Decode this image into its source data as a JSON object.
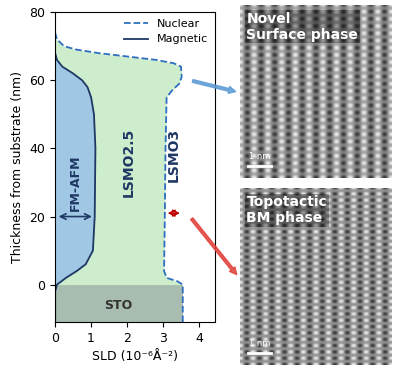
{
  "chart_data": {
    "type": "line",
    "xlabel": "SLD (10⁻⁶Å⁻²)",
    "ylabel": "Thickness from substrate (nm)",
    "xlim": [
      0,
      4.45
    ],
    "xticks": [
      0,
      1,
      2,
      3,
      4
    ],
    "ylim": [
      -11,
      80
    ],
    "yticks": [
      0,
      20,
      40,
      60,
      80
    ],
    "legend": "upper right",
    "series": [
      {
        "name": "Nuclear",
        "color": "#2e6fbf",
        "line_style": "dashed",
        "thickness": [
          -11,
          0,
          1,
          2,
          4,
          20,
          40,
          55,
          57,
          59,
          61,
          64,
          65,
          66,
          67,
          68,
          69,
          70,
          72,
          74
        ],
        "sld": [
          3.55,
          3.55,
          3.4,
          3.1,
          3.03,
          3.05,
          3.07,
          3.1,
          3.25,
          3.45,
          3.52,
          3.5,
          3.3,
          2.8,
          2.0,
          1.2,
          0.6,
          0.25,
          0.05,
          0.0
        ]
      },
      {
        "name": "Magnetic",
        "color": "#1f3864",
        "line_style": "solid",
        "thickness": [
          -11,
          -2,
          0,
          2,
          4,
          6,
          10,
          20,
          40,
          50,
          55,
          58,
          60,
          62,
          64,
          66,
          68
        ],
        "sld": [
          0.0,
          0.0,
          0.05,
          0.3,
          0.6,
          0.85,
          1.05,
          1.1,
          1.12,
          1.08,
          1.0,
          0.9,
          0.75,
          0.5,
          0.2,
          0.05,
          0.0
        ]
      }
    ],
    "annotations": {
      "fm_afm": "FM-AFM",
      "lsmo25": "LSMO2.5",
      "lsmo3": "LSMO3",
      "substrate": "STO"
    }
  },
  "panels": [
    {
      "label": "Novel\nSurface phase",
      "scale_bar": "1 nm"
    },
    {
      "label": "Topotactic\nBM phase",
      "scale_bar": "1 nm"
    }
  ]
}
